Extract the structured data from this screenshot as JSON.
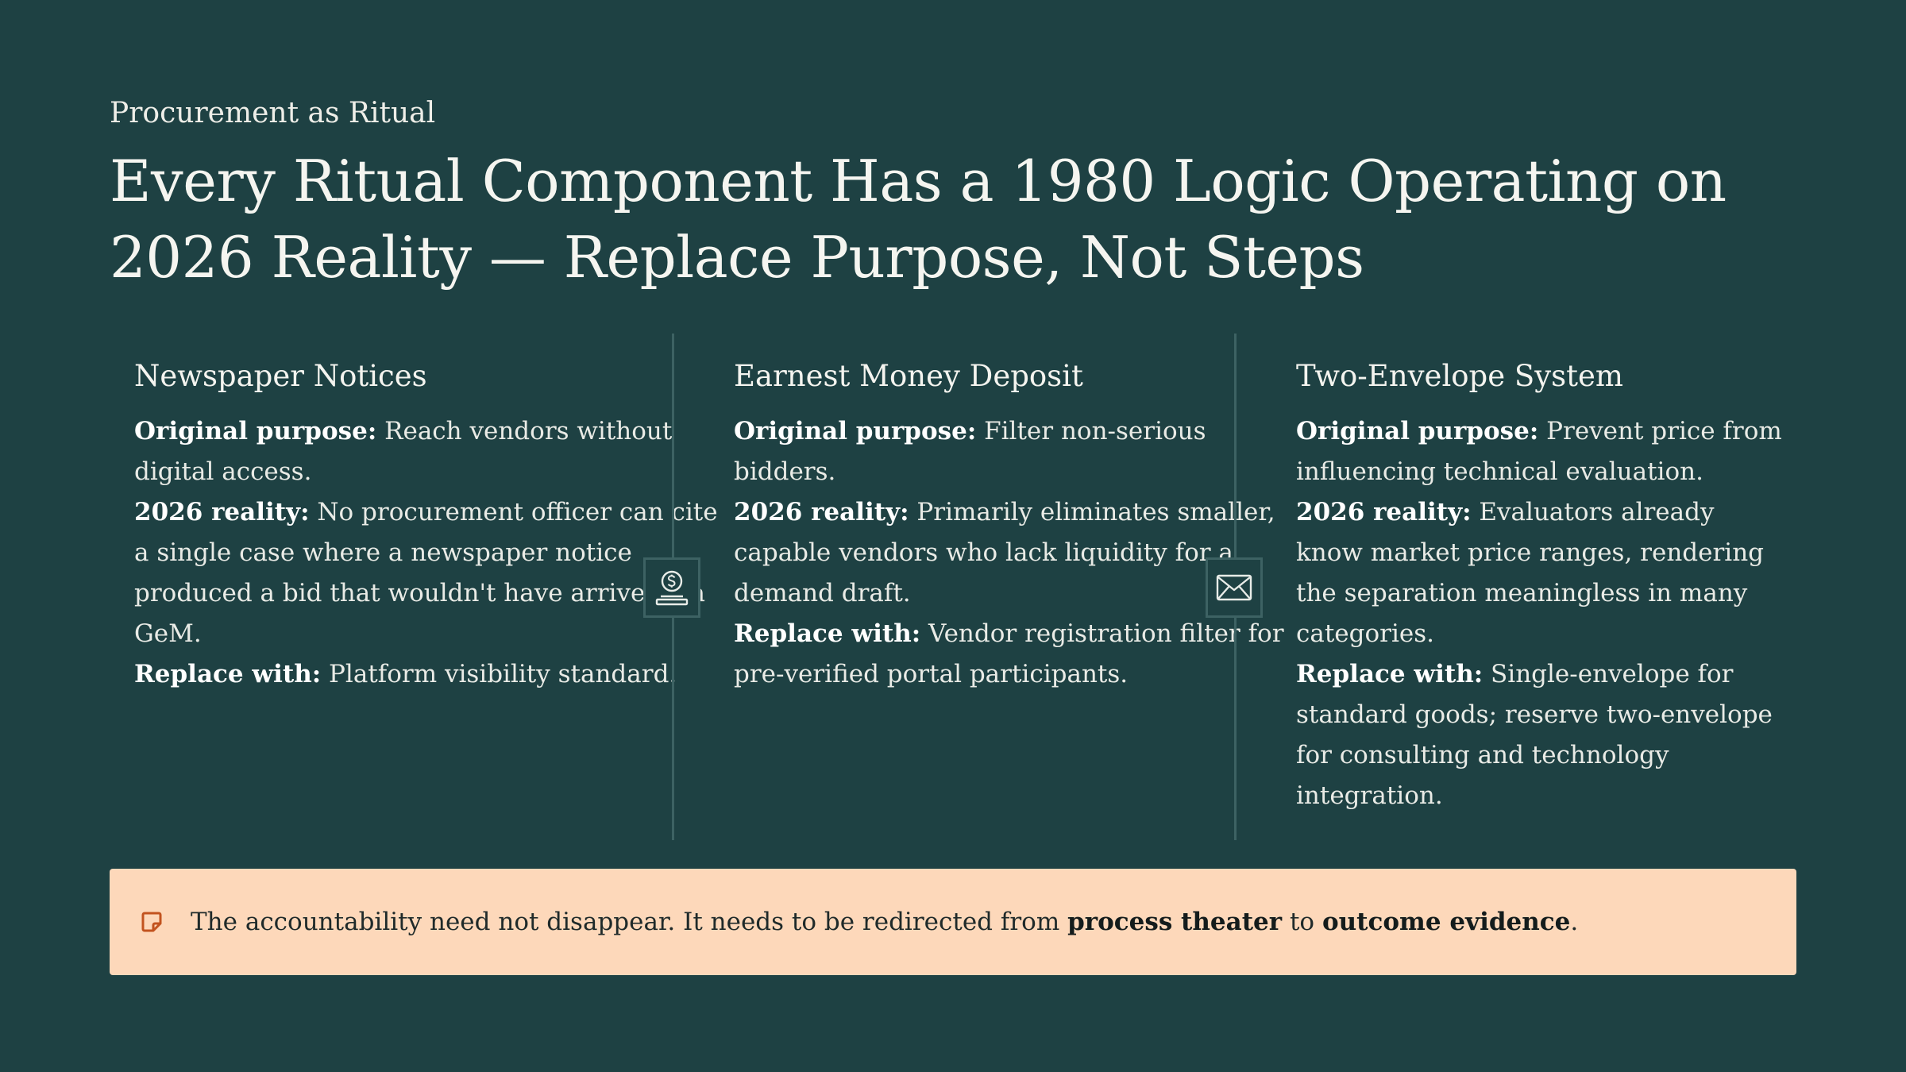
{
  "header": {
    "eyebrow": "Procurement as Ritual",
    "title": "Every Ritual Component Has a 1980 Logic Operating on 2026 Reality — Replace Purpose, Not Steps"
  },
  "columns": [
    {
      "heading": "Newspaper Notices",
      "purpose_label": "Original purpose:",
      "purpose_text": " Reach vendors without digital access.",
      "reality_label": "2026 reality:",
      "reality_text": " No procurement officer can cite a single case where a newspaper notice produced a bid that wouldn't have arrived via GeM.",
      "replace_label": "Replace with:",
      "replace_text": " Platform visibility standard."
    },
    {
      "heading": "Earnest Money Deposit",
      "purpose_label": "Original purpose:",
      "purpose_text": " Filter non-serious bidders.",
      "reality_label": "2026 reality:",
      "reality_text": " Primarily eliminates smaller, capable vendors who lack liquidity for a demand draft.",
      "replace_label": "Replace with:",
      "replace_text": " Vendor registration filter for pre-verified portal participants."
    },
    {
      "heading": "Two-Envelope System",
      "purpose_label": "Original purpose:",
      "purpose_text": " Prevent price from influencing technical evaluation.",
      "reality_label": "2026 reality:",
      "reality_text": " Evaluators already know market price ranges, rendering the separation meaningless in many categories.",
      "replace_label": "Replace with:",
      "replace_text": " Single-envelope for standard goods; reserve two-envelope for consulting and technology integration."
    }
  ],
  "dividers": [
    {
      "icon": "money-deposit-icon"
    },
    {
      "icon": "envelope-icon"
    }
  ],
  "callout": {
    "icon": "note-icon",
    "text_before": "The accountability need not disappear. It needs to be redirected from ",
    "bold_1": "process theater",
    "text_middle": " to ",
    "bold_2": "outcome evidence",
    "text_after": "."
  },
  "colors": {
    "background": "#1e4143",
    "divider": "#3d6263",
    "callout_bg": "#fdd8ba",
    "callout_icon": "#c2531f"
  }
}
